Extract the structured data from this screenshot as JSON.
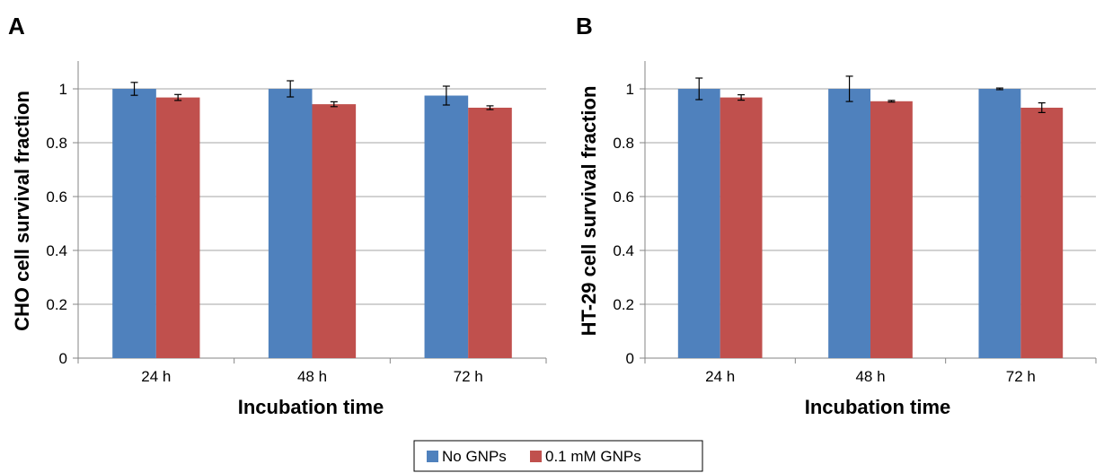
{
  "chart_data": [
    {
      "panel_label": "A",
      "type": "bar",
      "categories": [
        "24 h",
        "48 h",
        "72 h"
      ],
      "series": [
        {
          "name": "No GNPs",
          "values": [
            1.0,
            1.0,
            0.975
          ],
          "errors": [
            0.024,
            0.03,
            0.035
          ]
        },
        {
          "name": "0.1 mM GNPs",
          "values": [
            0.968,
            0.943,
            0.93
          ],
          "errors": [
            0.011,
            0.009,
            0.007
          ]
        }
      ],
      "xlabel": "Incubation time",
      "ylabel": "CHO cell survival fraction",
      "ylim": [
        0,
        1
      ],
      "yticks": [
        "0",
        "0.2",
        "0.4",
        "0.6",
        "0.8",
        "1"
      ],
      "grid": true
    },
    {
      "panel_label": "B",
      "type": "bar",
      "categories": [
        "24 h",
        "48 h",
        "72 h"
      ],
      "series": [
        {
          "name": "No GNPs",
          "values": [
            1.0,
            1.0,
            1.0
          ],
          "errors": [
            0.04,
            0.047,
            0.003
          ]
        },
        {
          "name": "0.1 mM GNPs",
          "values": [
            0.968,
            0.954,
            0.93
          ],
          "errors": [
            0.01,
            0.003,
            0.018
          ]
        }
      ],
      "xlabel": "Incubation time",
      "ylabel": "HT-29 cell survival fraction",
      "ylim": [
        0,
        1
      ],
      "yticks": [
        "0",
        "0.2",
        "0.4",
        "0.6",
        "0.8",
        "1"
      ],
      "grid": true
    }
  ],
  "legend": {
    "placement": "bottom-center",
    "items": [
      {
        "name": "No GNPs",
        "color": "#4f81bd"
      },
      {
        "name": "0.1 mM GNPs",
        "color": "#c0504d"
      }
    ]
  },
  "colors": {
    "series": [
      "#4f81bd",
      "#c0504d"
    ],
    "grid": "#a6a6a6",
    "axis": "#868686",
    "error_bar": "#000000"
  }
}
